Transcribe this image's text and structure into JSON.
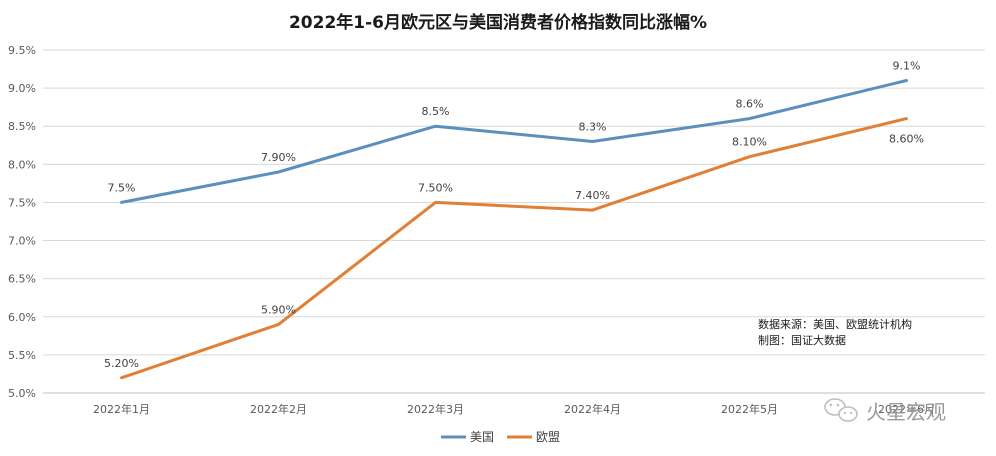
{
  "chart_data": {
    "type": "line",
    "title": "2022年1-6月欧元区与美国消费者价格指数同比涨幅%",
    "categories": [
      "2022年1月",
      "2022年2月",
      "2022年3月",
      "2022年4月",
      "2022年5月",
      "2022年6月"
    ],
    "y_ticks": [
      "5.0%",
      "5.5%",
      "6.0%",
      "6.5%",
      "7.0%",
      "7.5%",
      "8.0%",
      "8.5%",
      "9.0%",
      "9.5%"
    ],
    "ylim": [
      5.0,
      9.5
    ],
    "grid": true,
    "series": [
      {
        "name": "美国",
        "color": "#5b8fbd",
        "values": [
          7.5,
          7.9,
          8.5,
          8.3,
          8.6,
          9.1
        ],
        "labels": [
          "7.5%",
          "7.90%",
          "8.5%",
          "8.3%",
          "8.6%",
          "9.1%"
        ]
      },
      {
        "name": "欧盟",
        "color": "#e07f35",
        "values": [
          5.2,
          5.9,
          7.5,
          7.4,
          8.1,
          8.6
        ],
        "labels": [
          "5.20%",
          "5.90%",
          "7.50%",
          "7.40%",
          "8.10%",
          "8.60%"
        ]
      }
    ],
    "annotations": [
      "数据来源：美国、欧盟统计机构",
      "制图：国证大数据"
    ],
    "legend_position": "bottom"
  },
  "watermark": {
    "text": "火星宏观",
    "icon": "wechat-icon"
  }
}
